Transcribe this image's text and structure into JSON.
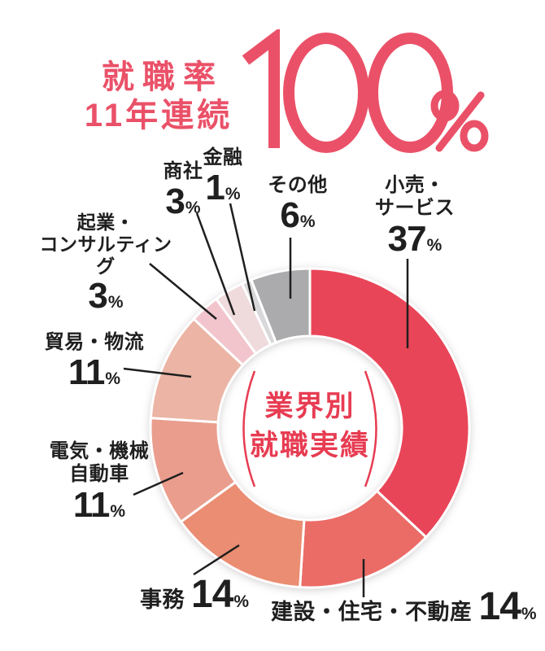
{
  "header": {
    "title_line1": "就職率",
    "title_line2": "11年連続",
    "big_value": "100",
    "big_unit": "%",
    "accent_color": "#EA5168"
  },
  "center_label": {
    "line1": "業界別",
    "line2": "就職実績",
    "color": "#E73C52"
  },
  "units": {
    "percent": "%"
  },
  "callouts": {
    "retail": {
      "line1": "小売・",
      "line2": "サービス",
      "value": "37"
    },
    "others": {
      "line1": "その他",
      "value": "6"
    },
    "finance": {
      "line1": "金融",
      "value": "1"
    },
    "trading": {
      "line1": "商社",
      "value": "3"
    },
    "startup": {
      "line1": "起業・",
      "line2": "コンサルティング",
      "value": "3"
    },
    "trade": {
      "line1": "貿易・物流",
      "value": "11"
    },
    "electric": {
      "line1": "電気・機械",
      "line2": "自動車",
      "value": "11"
    },
    "office": {
      "line1": "事務",
      "value": "14"
    },
    "construction": {
      "line1": "建設・住宅・不動産",
      "value": "14"
    }
  },
  "chart_data": {
    "type": "pie",
    "donut": true,
    "title": "業界別就職実績",
    "start_angle": "top",
    "direction": "clockwise",
    "unit": "%",
    "segments": [
      {
        "label": "小売・サービス",
        "value": 37,
        "color": "#E94558"
      },
      {
        "label": "建設・住宅・不動産",
        "value": 14,
        "color": "#EB6B66"
      },
      {
        "label": "事務",
        "value": 14,
        "color": "#EA8D72"
      },
      {
        "label": "電気・機械自動車",
        "value": 11,
        "color": "#EA9D8D"
      },
      {
        "label": "貿易・物流",
        "value": 11,
        "color": "#EBB4A4"
      },
      {
        "label": "起業・コンサルティング",
        "value": 3,
        "color": "#F2C4CC"
      },
      {
        "label": "商社",
        "value": 3,
        "color": "#EFDADC"
      },
      {
        "label": "金融",
        "value": 1,
        "color": "#D8D8DA"
      },
      {
        "label": "その他",
        "value": 6,
        "color": "#ABABAD"
      }
    ]
  }
}
